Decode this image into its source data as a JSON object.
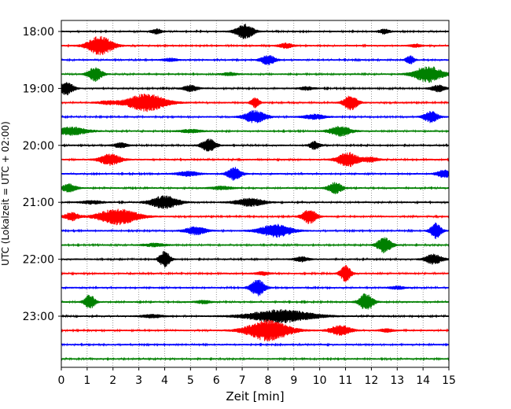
{
  "chart_data": {
    "type": "line",
    "title": "",
    "xlabel": "Zeit  [min]",
    "ylabel": "UTC (Lokalzeit = UTC + 02:00)",
    "xlim": [
      0,
      15
    ],
    "x_ticks": [
      "0",
      "1",
      "2",
      "3",
      "4",
      "5",
      "6",
      "7",
      "8",
      "9",
      "10",
      "11",
      "12",
      "13",
      "14",
      "15"
    ],
    "y_tick_labels": [
      "18:00",
      "19:00",
      "20:00",
      "21:00",
      "22:00",
      "23:00"
    ],
    "grid": "vertical-dotted",
    "line_colors": [
      "#000000",
      "#ff0000",
      "#0000ff",
      "#008000"
    ],
    "trace_interval_min": 15,
    "traces": [
      {
        "time": "18:00",
        "color": "black",
        "bursts": [
          [
            7.1,
            0.25,
            9
          ],
          [
            3.7,
            0.15,
            3
          ],
          [
            12.5,
            0.15,
            3
          ]
        ]
      },
      {
        "time": "18:15",
        "color": "red",
        "bursts": [
          [
            1.5,
            0.35,
            12
          ],
          [
            8.7,
            0.2,
            3
          ],
          [
            13.7,
            0.15,
            2
          ]
        ]
      },
      {
        "time": "18:30",
        "color": "blue",
        "bursts": [
          [
            8.0,
            0.2,
            6
          ],
          [
            13.5,
            0.12,
            5
          ],
          [
            4.2,
            0.2,
            2
          ]
        ]
      },
      {
        "time": "18:45",
        "color": "green",
        "bursts": [
          [
            1.3,
            0.2,
            9
          ],
          [
            14.2,
            0.4,
            10
          ],
          [
            6.5,
            0.2,
            2
          ]
        ]
      },
      {
        "time": "19:00",
        "color": "black",
        "bursts": [
          [
            0.2,
            0.2,
            8
          ],
          [
            5.0,
            0.2,
            4
          ],
          [
            9.5,
            0.2,
            2
          ],
          [
            14.6,
            0.2,
            4
          ]
        ]
      },
      {
        "time": "19:15",
        "color": "red",
        "bursts": [
          [
            3.3,
            0.55,
            11
          ],
          [
            7.5,
            0.12,
            6
          ],
          [
            11.2,
            0.2,
            9
          ],
          [
            1.8,
            0.3,
            2
          ]
        ]
      },
      {
        "time": "19:30",
        "color": "blue",
        "bursts": [
          [
            7.5,
            0.3,
            8
          ],
          [
            14.3,
            0.2,
            7
          ],
          [
            9.8,
            0.3,
            3
          ]
        ]
      },
      {
        "time": "19:45",
        "color": "green",
        "bursts": [
          [
            0.4,
            0.45,
            5
          ],
          [
            10.8,
            0.3,
            6
          ],
          [
            5.0,
            0.3,
            2
          ]
        ]
      },
      {
        "time": "20:00",
        "color": "black",
        "bursts": [
          [
            5.7,
            0.2,
            8
          ],
          [
            9.8,
            0.15,
            5
          ],
          [
            2.3,
            0.2,
            3
          ]
        ]
      },
      {
        "time": "20:15",
        "color": "red",
        "bursts": [
          [
            1.9,
            0.3,
            7
          ],
          [
            11.1,
            0.3,
            9
          ],
          [
            12.0,
            0.2,
            3
          ]
        ]
      },
      {
        "time": "20:30",
        "color": "blue",
        "bursts": [
          [
            6.7,
            0.2,
            8
          ],
          [
            14.8,
            0.2,
            5
          ],
          [
            4.9,
            0.3,
            3
          ]
        ]
      },
      {
        "time": "20:45",
        "color": "green",
        "bursts": [
          [
            0.3,
            0.2,
            5
          ],
          [
            10.6,
            0.2,
            7
          ],
          [
            6.2,
            0.3,
            2
          ]
        ]
      },
      {
        "time": "21:00",
        "color": "black",
        "bursts": [
          [
            4.0,
            0.4,
            8
          ],
          [
            7.3,
            0.4,
            5
          ],
          [
            1.2,
            0.3,
            2
          ]
        ]
      },
      {
        "time": "21:15",
        "color": "red",
        "bursts": [
          [
            2.2,
            0.55,
            10
          ],
          [
            9.6,
            0.2,
            9
          ],
          [
            0.4,
            0.2,
            5
          ]
        ]
      },
      {
        "time": "21:30",
        "color": "blue",
        "bursts": [
          [
            8.3,
            0.45,
            8
          ],
          [
            14.5,
            0.15,
            10
          ],
          [
            5.2,
            0.3,
            5
          ]
        ]
      },
      {
        "time": "21:45",
        "color": "green",
        "bursts": [
          [
            12.5,
            0.2,
            10
          ],
          [
            3.6,
            0.3,
            2
          ]
        ]
      },
      {
        "time": "22:00",
        "color": "black",
        "bursts": [
          [
            4.0,
            0.15,
            10
          ],
          [
            14.4,
            0.25,
            6
          ],
          [
            9.3,
            0.2,
            3
          ]
        ]
      },
      {
        "time": "22:15",
        "color": "red",
        "bursts": [
          [
            11.0,
            0.15,
            10
          ],
          [
            7.8,
            0.2,
            2
          ]
        ]
      },
      {
        "time": "22:30",
        "color": "blue",
        "bursts": [
          [
            7.6,
            0.2,
            10
          ],
          [
            13.0,
            0.2,
            2
          ]
        ]
      },
      {
        "time": "22:45",
        "color": "green",
        "bursts": [
          [
            1.1,
            0.15,
            9
          ],
          [
            11.8,
            0.2,
            11
          ],
          [
            5.5,
            0.2,
            2
          ]
        ]
      },
      {
        "time": "23:00",
        "color": "black",
        "bursts": [
          [
            8.5,
            0.9,
            8
          ],
          [
            3.5,
            0.3,
            2
          ]
        ]
      },
      {
        "time": "23:15",
        "color": "red",
        "bursts": [
          [
            8.0,
            0.6,
            13
          ],
          [
            10.8,
            0.3,
            6
          ],
          [
            12.6,
            0.2,
            2
          ]
        ]
      },
      {
        "time": "23:30",
        "color": "blue",
        "bursts": []
      },
      {
        "time": "23:45",
        "color": "green",
        "bursts": []
      }
    ]
  }
}
